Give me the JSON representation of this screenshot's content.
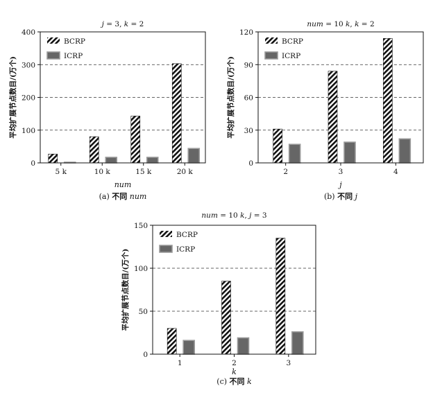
{
  "chart_data": [
    {
      "type": "bar",
      "title": "j = 3, k = 2",
      "xlabel": "num",
      "ylabel": "平均扩展节点数目/(万个)",
      "caption": "(a) 不同 num",
      "categories": [
        "5 k",
        "10 k",
        "15 k",
        "20 k"
      ],
      "series": [
        {
          "name": "BCRP",
          "values": [
            27,
            80,
            143,
            303
          ]
        },
        {
          "name": "ICRP",
          "values": [
            2,
            17,
            17,
            44
          ]
        }
      ],
      "yticks": [
        "0",
        "100",
        "200",
        "300",
        "400"
      ],
      "ylim": [
        0,
        400
      ],
      "grid": "dashed horizontal",
      "legend": "top-left"
    },
    {
      "type": "bar",
      "title": "num = 10 k, k = 2",
      "xlabel": "j",
      "ylabel": "平均扩展节点数目/(万个)",
      "caption": "(b) 不同 j",
      "categories": [
        "2",
        "3",
        "4"
      ],
      "series": [
        {
          "name": "BCRP",
          "values": [
            31,
            84,
            114
          ]
        },
        {
          "name": "ICRP",
          "values": [
            17,
            19,
            22
          ]
        }
      ],
      "yticks": [
        "0",
        "30",
        "60",
        "90",
        "120"
      ],
      "ylim": [
        0,
        120
      ],
      "grid": "dashed horizontal",
      "legend": "top-left"
    },
    {
      "type": "bar",
      "title": "num = 10 k, j = 3",
      "xlabel": "k",
      "ylabel": "平均扩展节点数目/(万个)",
      "caption": "(c) 不同 k",
      "categories": [
        "1",
        "2",
        "3"
      ],
      "series": [
        {
          "name": "BCRP",
          "values": [
            30,
            85,
            135
          ]
        },
        {
          "name": "ICRP",
          "values": [
            16,
            19,
            26
          ]
        }
      ],
      "yticks": [
        "0",
        "50",
        "100",
        "150"
      ],
      "ylim": [
        0,
        150
      ],
      "grid": "dashed horizontal",
      "legend": "top-left"
    }
  ]
}
